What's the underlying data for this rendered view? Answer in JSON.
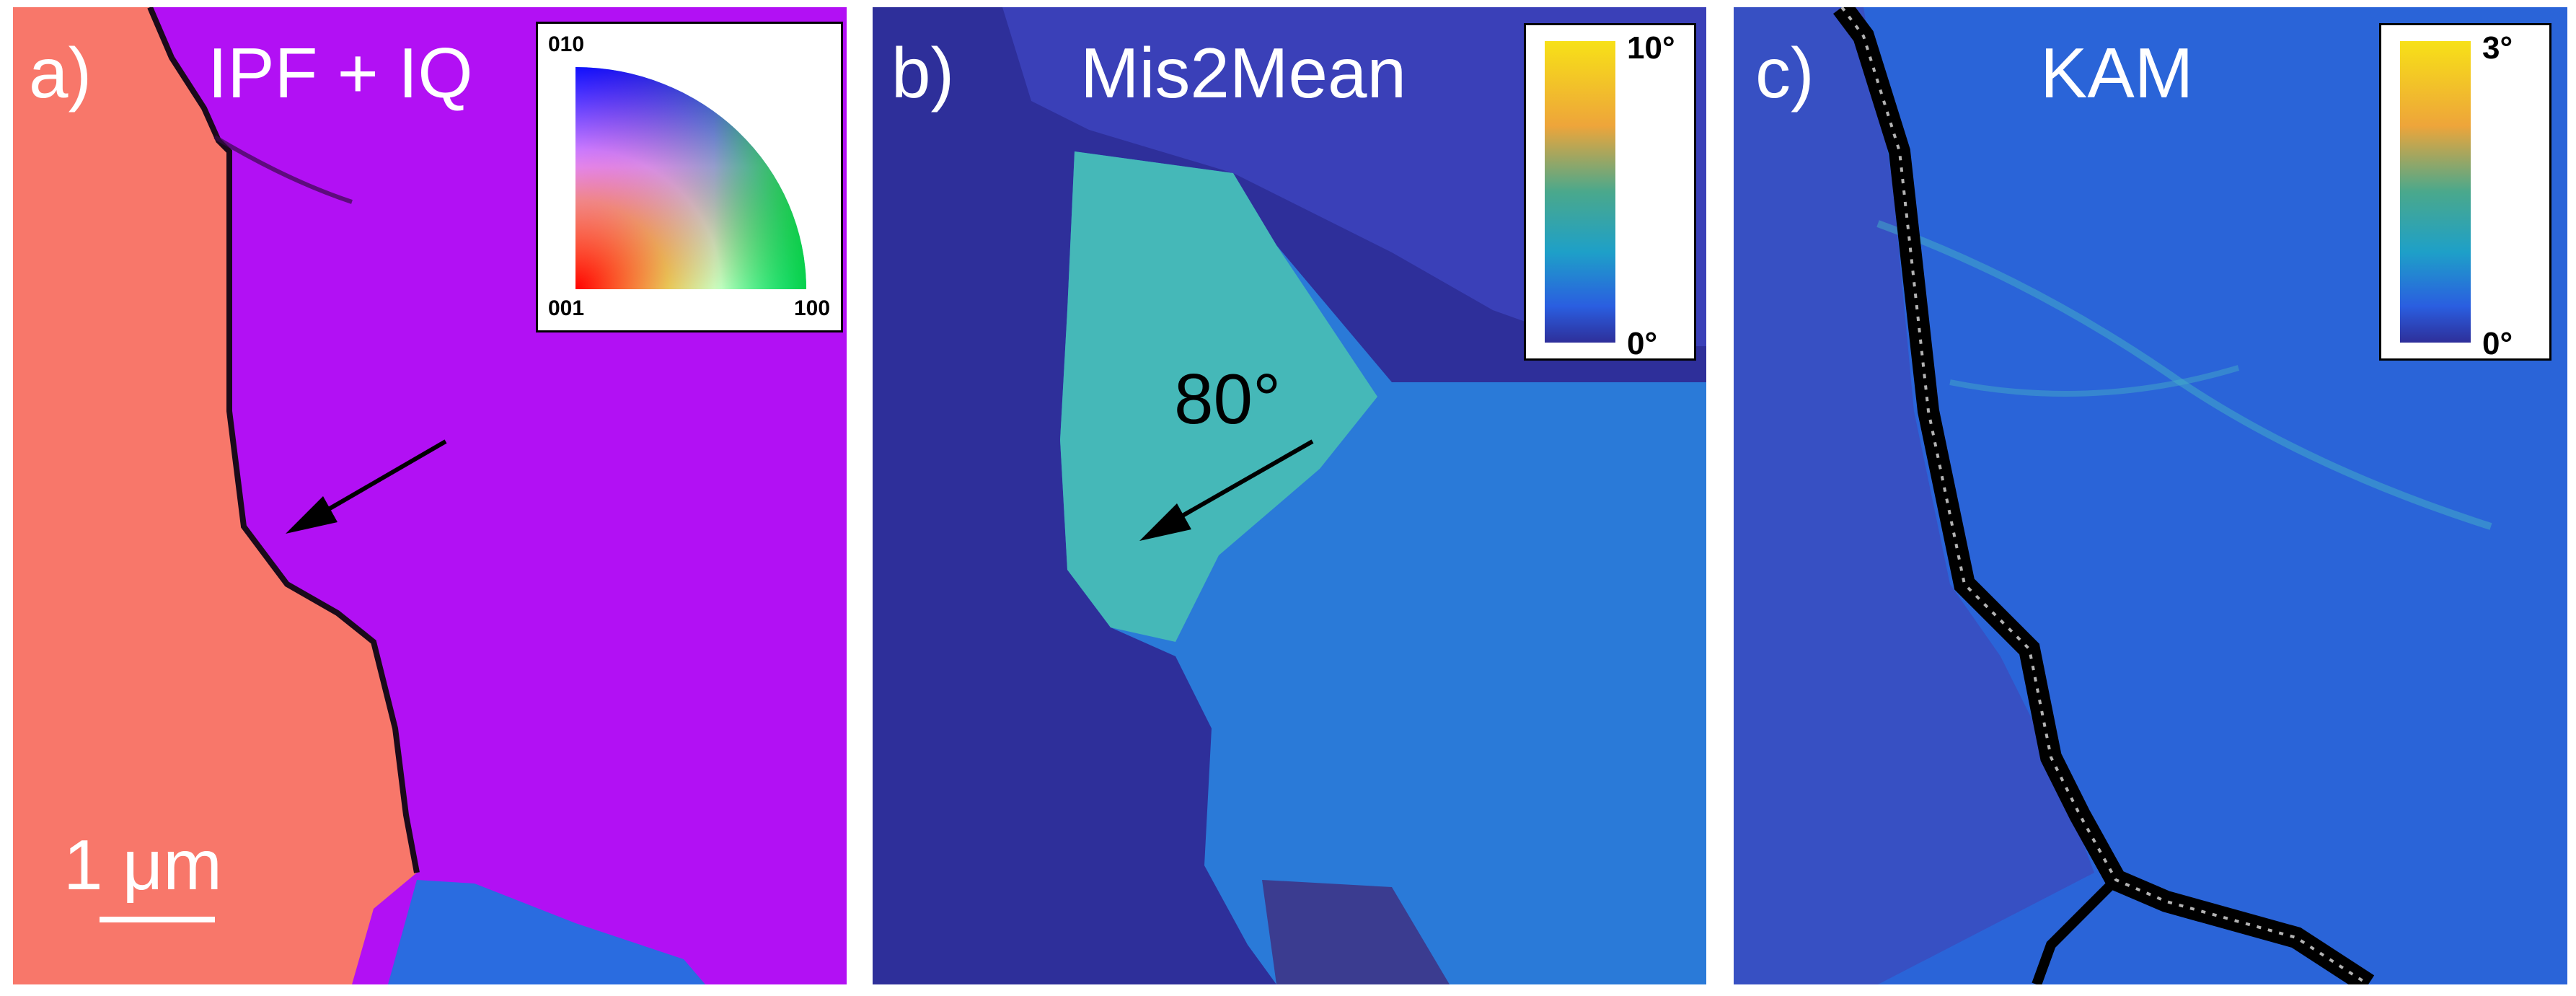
{
  "panels": {
    "a": {
      "letter": "a)",
      "title": "IPF + IQ",
      "scale_bar": "1 μm",
      "ipf_legend": {
        "top": "010",
        "left": "001",
        "right": "100"
      }
    },
    "b": {
      "letter": "b)",
      "title": "Mis2Mean",
      "annotation": "80°",
      "colorbar": {
        "max": "10°",
        "min": "0°"
      }
    },
    "c": {
      "letter": "c)",
      "title": "KAM",
      "colorbar": {
        "max": "3°",
        "min": "0°"
      }
    }
  },
  "colors": {
    "grain_red": "#f8776a",
    "grain_purple": "#b210f4",
    "grain_blue": "#2a6ce0",
    "mis_dark": "#2e2f9a",
    "mis_cyan": "#45b8b8",
    "mis_blue": "#2a7ad8",
    "kam_bg": "#2a64d8",
    "boundary": "#000000"
  }
}
